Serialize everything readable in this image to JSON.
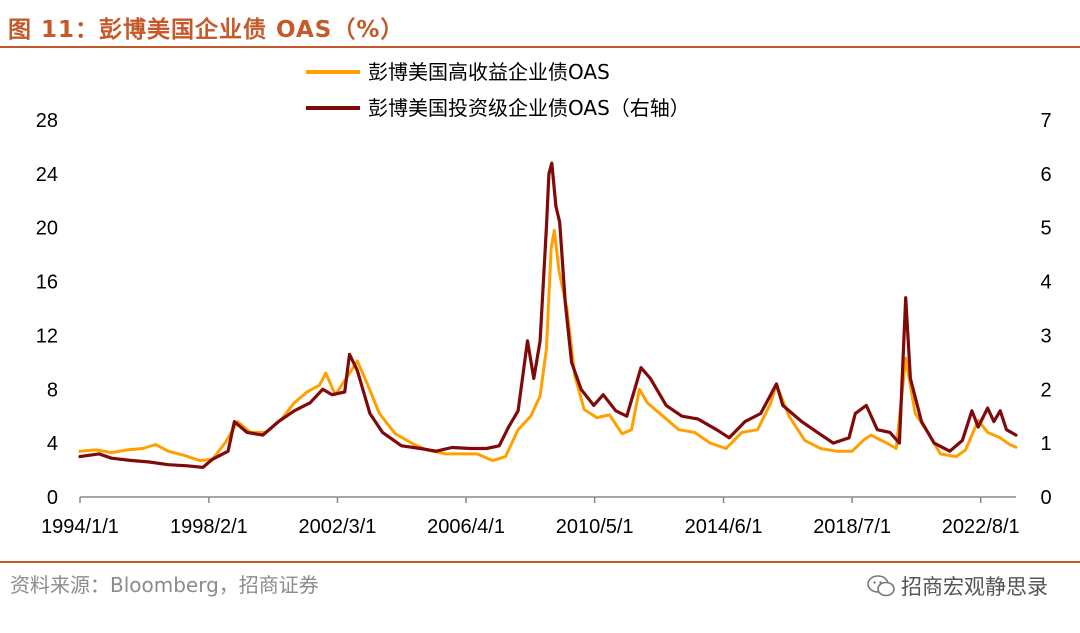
{
  "header": {
    "title": "图 11：彭博美国企业债 OAS（%）"
  },
  "footer": {
    "source": "资料来源：Bloomberg，招商证券",
    "watermark": "招商宏观静思录",
    "watermark_icon": "wechat-icon"
  },
  "colors": {
    "title": "#c45a2a",
    "rule": "#c45a2a",
    "high_yield": "#ffa000",
    "investment_grade": "#7f0a0a"
  },
  "chart_data": {
    "type": "line",
    "grid": false,
    "legend_position": "top-center",
    "x_tick_labels": [
      "1994/1/1",
      "1998/2/1",
      "2002/3/1",
      "2006/4/1",
      "2010/5/1",
      "2014/6/1",
      "2018/7/1",
      "2022/8/1"
    ],
    "x_ticks": [
      1994.0,
      1998.09,
      2002.17,
      2006.25,
      2010.33,
      2014.42,
      2018.5,
      2022.58
    ],
    "xlim": [
      1994.0,
      2023.7
    ],
    "y_left": {
      "ticks": [
        0,
        4,
        8,
        12,
        16,
        20,
        24,
        28
      ],
      "range": [
        0,
        28
      ]
    },
    "y_right": {
      "ticks": [
        0,
        1,
        2,
        3,
        4,
        5,
        6,
        7
      ],
      "range": [
        0,
        7
      ]
    },
    "series": [
      {
        "name": "彭博美国高收益企业债OAS",
        "axis": "left",
        "color": "#ffa000",
        "points": [
          [
            1994.0,
            3.4
          ],
          [
            1994.5,
            3.5
          ],
          [
            1995.0,
            3.3
          ],
          [
            1995.5,
            3.5
          ],
          [
            1996.0,
            3.6
          ],
          [
            1996.4,
            3.9
          ],
          [
            1996.8,
            3.4
          ],
          [
            1997.3,
            3.1
          ],
          [
            1997.8,
            2.7
          ],
          [
            1998.2,
            2.8
          ],
          [
            1998.6,
            4.0
          ],
          [
            1999.0,
            5.6
          ],
          [
            1999.4,
            4.8
          ],
          [
            1999.9,
            4.8
          ],
          [
            2000.4,
            5.8
          ],
          [
            2000.8,
            7.0
          ],
          [
            2001.2,
            7.8
          ],
          [
            2001.6,
            8.3
          ],
          [
            2001.8,
            9.2
          ],
          [
            2002.1,
            7.6
          ],
          [
            2002.5,
            9.0
          ],
          [
            2002.8,
            10.1
          ],
          [
            2003.1,
            8.5
          ],
          [
            2003.5,
            6.2
          ],
          [
            2004.0,
            4.7
          ],
          [
            2004.6,
            3.9
          ],
          [
            2005.0,
            3.5
          ],
          [
            2005.6,
            3.2
          ],
          [
            2006.0,
            3.2
          ],
          [
            2006.6,
            3.2
          ],
          [
            2007.1,
            2.7
          ],
          [
            2007.5,
            3.0
          ],
          [
            2007.9,
            5.0
          ],
          [
            2008.3,
            6.0
          ],
          [
            2008.6,
            7.5
          ],
          [
            2008.8,
            11.0
          ],
          [
            2008.95,
            18.5
          ],
          [
            2009.05,
            19.8
          ],
          [
            2009.2,
            16.8
          ],
          [
            2009.45,
            14.0
          ],
          [
            2009.7,
            9.0
          ],
          [
            2010.0,
            6.5
          ],
          [
            2010.4,
            5.9
          ],
          [
            2010.8,
            6.1
          ],
          [
            2011.2,
            4.7
          ],
          [
            2011.5,
            5.0
          ],
          [
            2011.75,
            8.0
          ],
          [
            2012.0,
            7.0
          ],
          [
            2012.5,
            6.0
          ],
          [
            2013.0,
            5.0
          ],
          [
            2013.5,
            4.8
          ],
          [
            2014.0,
            4.0
          ],
          [
            2014.5,
            3.6
          ],
          [
            2015.0,
            4.8
          ],
          [
            2015.5,
            5.0
          ],
          [
            2015.9,
            6.9
          ],
          [
            2016.1,
            8.3
          ],
          [
            2016.5,
            6.0
          ],
          [
            2017.0,
            4.2
          ],
          [
            2017.5,
            3.6
          ],
          [
            2018.0,
            3.4
          ],
          [
            2018.5,
            3.4
          ],
          [
            2018.9,
            4.3
          ],
          [
            2019.1,
            4.6
          ],
          [
            2019.6,
            4.0
          ],
          [
            2019.9,
            3.6
          ],
          [
            2020.2,
            10.3
          ],
          [
            2020.3,
            9.0
          ],
          [
            2020.5,
            6.2
          ],
          [
            2020.9,
            4.8
          ],
          [
            2021.3,
            3.2
          ],
          [
            2021.8,
            3.0
          ],
          [
            2022.1,
            3.5
          ],
          [
            2022.5,
            5.7
          ],
          [
            2022.8,
            4.8
          ],
          [
            2023.2,
            4.4
          ],
          [
            2023.5,
            3.9
          ],
          [
            2023.7,
            3.7
          ]
        ]
      },
      {
        "name": "彭博美国投资级企业债OAS（右轴）",
        "axis": "right",
        "color": "#7f0a0a",
        "points": [
          [
            1994.0,
            0.75
          ],
          [
            1994.6,
            0.8
          ],
          [
            1995.0,
            0.72
          ],
          [
            1995.6,
            0.68
          ],
          [
            1996.2,
            0.65
          ],
          [
            1996.8,
            0.6
          ],
          [
            1997.4,
            0.58
          ],
          [
            1997.9,
            0.55
          ],
          [
            1998.2,
            0.7
          ],
          [
            1998.7,
            0.85
          ],
          [
            1998.9,
            1.4
          ],
          [
            1999.3,
            1.2
          ],
          [
            1999.8,
            1.15
          ],
          [
            2000.3,
            1.4
          ],
          [
            2000.8,
            1.6
          ],
          [
            2001.3,
            1.75
          ],
          [
            2001.7,
            2.0
          ],
          [
            2002.0,
            1.9
          ],
          [
            2002.4,
            1.95
          ],
          [
            2002.55,
            2.65
          ],
          [
            2002.8,
            2.35
          ],
          [
            2003.2,
            1.55
          ],
          [
            2003.6,
            1.2
          ],
          [
            2004.2,
            0.95
          ],
          [
            2004.8,
            0.9
          ],
          [
            2005.3,
            0.85
          ],
          [
            2005.8,
            0.92
          ],
          [
            2006.4,
            0.9
          ],
          [
            2006.9,
            0.9
          ],
          [
            2007.3,
            0.95
          ],
          [
            2007.6,
            1.3
          ],
          [
            2007.9,
            1.6
          ],
          [
            2008.2,
            2.9
          ],
          [
            2008.4,
            2.2
          ],
          [
            2008.6,
            2.9
          ],
          [
            2008.8,
            5.0
          ],
          [
            2008.88,
            6.0
          ],
          [
            2008.97,
            6.2
          ],
          [
            2009.1,
            5.4
          ],
          [
            2009.22,
            5.1
          ],
          [
            2009.4,
            3.6
          ],
          [
            2009.6,
            2.5
          ],
          [
            2009.9,
            2.0
          ],
          [
            2010.3,
            1.7
          ],
          [
            2010.6,
            1.9
          ],
          [
            2011.0,
            1.6
          ],
          [
            2011.35,
            1.5
          ],
          [
            2011.8,
            2.4
          ],
          [
            2012.1,
            2.2
          ],
          [
            2012.6,
            1.7
          ],
          [
            2013.1,
            1.5
          ],
          [
            2013.6,
            1.45
          ],
          [
            2014.2,
            1.25
          ],
          [
            2014.6,
            1.1
          ],
          [
            2015.1,
            1.4
          ],
          [
            2015.6,
            1.55
          ],
          [
            2016.1,
            2.1
          ],
          [
            2016.3,
            1.7
          ],
          [
            2016.9,
            1.4
          ],
          [
            2017.4,
            1.2
          ],
          [
            2017.9,
            1.0
          ],
          [
            2018.4,
            1.1
          ],
          [
            2018.6,
            1.55
          ],
          [
            2018.95,
            1.7
          ],
          [
            2019.3,
            1.25
          ],
          [
            2019.7,
            1.2
          ],
          [
            2020.0,
            1.0
          ],
          [
            2020.2,
            3.7
          ],
          [
            2020.35,
            2.2
          ],
          [
            2020.7,
            1.4
          ],
          [
            2021.1,
            1.0
          ],
          [
            2021.6,
            0.85
          ],
          [
            2022.0,
            1.05
          ],
          [
            2022.3,
            1.6
          ],
          [
            2022.5,
            1.3
          ],
          [
            2022.8,
            1.65
          ],
          [
            2023.0,
            1.4
          ],
          [
            2023.2,
            1.6
          ],
          [
            2023.4,
            1.25
          ],
          [
            2023.7,
            1.15
          ]
        ]
      }
    ]
  }
}
